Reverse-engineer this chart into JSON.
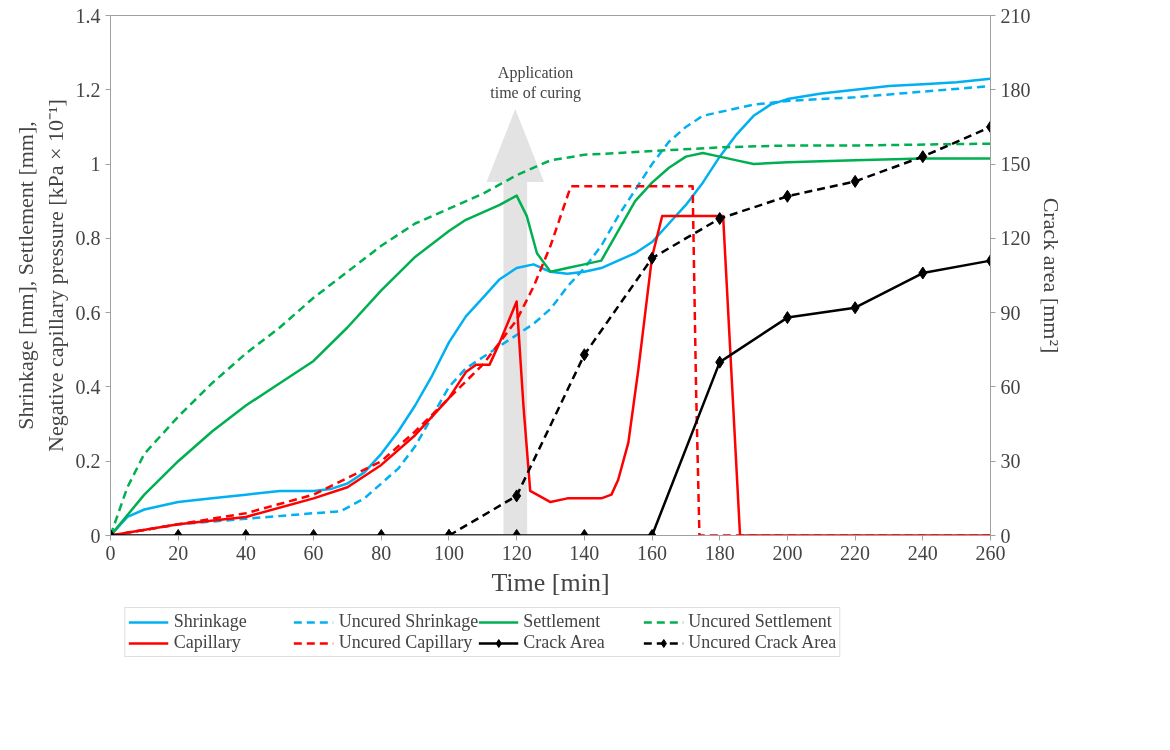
{
  "chart_data": {
    "type": "line",
    "xlabel": "Time [min]",
    "ylabel": "Shrinkage [mm], Settlement [mm], Negative capillary pressure [kPa × 10⁻¹]",
    "y2label": "Crack area [mm²]",
    "xlim": [
      0,
      260
    ],
    "xticks": [
      0,
      20,
      40,
      60,
      80,
      100,
      120,
      140,
      160,
      180,
      200,
      220,
      240,
      260
    ],
    "ylim": [
      0,
      1.4
    ],
    "yticks": [
      0,
      0.2,
      0.4,
      0.6,
      0.8,
      1,
      1.2,
      1.4
    ],
    "y2lim": [
      0,
      210
    ],
    "y2ticks": [
      0,
      30,
      60,
      90,
      120,
      150,
      180,
      210
    ],
    "grid": false,
    "legend": "bottom",
    "marker": "none",
    "annotations": [
      "Application time of curing"
    ],
    "series": [
      {
        "name": "Shrinkage",
        "color": "#00b0f0",
        "line_style": "solid",
        "x": [
          0,
          5,
          10,
          20,
          30,
          40,
          50,
          60,
          65,
          70,
          75,
          80,
          85,
          90,
          95,
          100,
          105,
          110,
          115,
          120,
          125,
          130,
          135,
          140,
          145,
          150,
          155,
          160,
          165,
          170,
          175,
          180,
          185,
          190,
          195,
          200,
          210,
          220,
          230,
          240,
          250,
          260
        ],
        "values": [
          0,
          0.05,
          0.07,
          0.09,
          0.1,
          0.11,
          0.12,
          0.12,
          0.125,
          0.14,
          0.17,
          0.22,
          0.28,
          0.35,
          0.43,
          0.52,
          0.59,
          0.64,
          0.69,
          0.72,
          0.73,
          0.71,
          0.705,
          0.71,
          0.72,
          0.74,
          0.76,
          0.79,
          0.84,
          0.89,
          0.95,
          1.02,
          1.08,
          1.13,
          1.16,
          1.175,
          1.19,
          1.2,
          1.21,
          1.215,
          1.22,
          1.23
        ]
      },
      {
        "name": "Uncured Shrinkage",
        "color": "#00b0f0",
        "line_style": "dashed",
        "x": [
          0,
          20,
          40,
          60,
          68,
          75,
          80,
          85,
          90,
          95,
          100,
          105,
          110,
          115,
          120,
          125,
          130,
          135,
          140,
          145,
          150,
          155,
          160,
          165,
          170,
          175,
          180,
          190,
          200,
          220,
          240,
          260
        ],
        "values": [
          0,
          0.03,
          0.045,
          0.06,
          0.065,
          0.1,
          0.14,
          0.18,
          0.24,
          0.32,
          0.4,
          0.45,
          0.48,
          0.51,
          0.54,
          0.57,
          0.61,
          0.67,
          0.72,
          0.78,
          0.86,
          0.93,
          1.0,
          1.06,
          1.1,
          1.13,
          1.14,
          1.16,
          1.17,
          1.18,
          1.195,
          1.21
        ]
      },
      {
        "name": "Settlement",
        "color": "#00b050",
        "line_style": "solid",
        "x": [
          0,
          10,
          20,
          30,
          40,
          50,
          60,
          70,
          80,
          90,
          100,
          105,
          110,
          115,
          120,
          123,
          126,
          130,
          135,
          140,
          145,
          150,
          155,
          160,
          165,
          170,
          175,
          180,
          185,
          190,
          200,
          220,
          240,
          260
        ],
        "values": [
          0,
          0.11,
          0.2,
          0.28,
          0.35,
          0.41,
          0.47,
          0.56,
          0.66,
          0.75,
          0.82,
          0.85,
          0.87,
          0.89,
          0.915,
          0.86,
          0.76,
          0.71,
          0.72,
          0.73,
          0.74,
          0.82,
          0.9,
          0.95,
          0.99,
          1.02,
          1.03,
          1.02,
          1.01,
          1.0,
          1.005,
          1.01,
          1.015,
          1.015
        ]
      },
      {
        "name": "Uncured Settlement",
        "color": "#00b050",
        "line_style": "dashed",
        "x": [
          0,
          5,
          10,
          20,
          30,
          40,
          50,
          60,
          70,
          80,
          90,
          100,
          110,
          120,
          130,
          140,
          160,
          180,
          200,
          220,
          260
        ],
        "values": [
          0,
          0.13,
          0.22,
          0.32,
          0.41,
          0.49,
          0.56,
          0.64,
          0.71,
          0.78,
          0.84,
          0.88,
          0.92,
          0.97,
          1.01,
          1.025,
          1.035,
          1.045,
          1.05,
          1.05,
          1.055
        ]
      },
      {
        "name": "Capillary",
        "color": "#ff0000",
        "line_style": "solid",
        "x": [
          0,
          20,
          40,
          60,
          70,
          80,
          90,
          100,
          105,
          108,
          112,
          115,
          120,
          122,
          124,
          126,
          130,
          135,
          140,
          145,
          148,
          150,
          153,
          156,
          158,
          160,
          163,
          181,
          186,
          260
        ],
        "values": [
          0,
          0.03,
          0.05,
          0.1,
          0.13,
          0.19,
          0.27,
          0.37,
          0.44,
          0.46,
          0.46,
          0.52,
          0.63,
          0.35,
          0.12,
          0.11,
          0.09,
          0.1,
          0.1,
          0.1,
          0.11,
          0.15,
          0.25,
          0.45,
          0.6,
          0.75,
          0.86,
          0.86,
          0,
          0
        ]
      },
      {
        "name": "Uncured Capillary",
        "color": "#ff0000",
        "line_style": "dashed",
        "x": [
          0,
          20,
          40,
          60,
          80,
          90,
          100,
          110,
          115,
          120,
          125,
          130,
          136,
          172,
          173,
          174,
          260
        ],
        "values": [
          0,
          0.03,
          0.06,
          0.11,
          0.2,
          0.28,
          0.37,
          0.46,
          0.52,
          0.58,
          0.67,
          0.78,
          0.94,
          0.94,
          0.4,
          0,
          0
        ]
      },
      {
        "name": "Crack Area",
        "color": "#000000",
        "line_style": "solid",
        "marker": "diamond",
        "axis": "y2",
        "x": [
          0,
          20,
          40,
          60,
          80,
          100,
          120,
          140,
          160,
          180,
          200,
          220,
          240,
          260
        ],
        "values": [
          0,
          0,
          0,
          0,
          0,
          0,
          0,
          0,
          0,
          70,
          88,
          92,
          106,
          111
        ]
      },
      {
        "name": "Uncured Crack Area",
        "color": "#000000",
        "line_style": "dashed",
        "marker": "diamond",
        "axis": "y2",
        "x": [
          100,
          120,
          140,
          160,
          180,
          200,
          220,
          240,
          260
        ],
        "values": [
          0,
          16,
          73,
          112,
          128,
          137,
          143,
          153,
          165
        ]
      }
    ]
  }
}
